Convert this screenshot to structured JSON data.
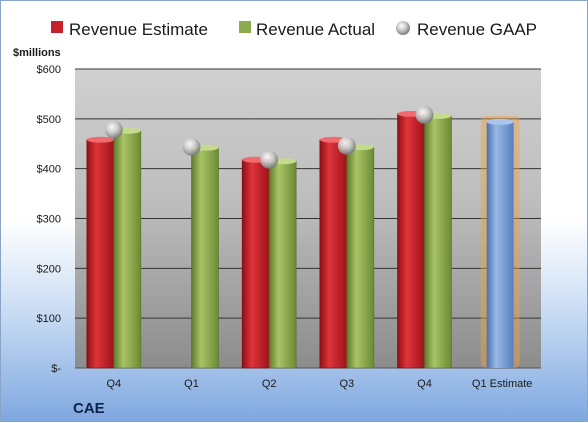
{
  "chart_data": {
    "type": "bar",
    "company": "CAE",
    "ylabel": "$millions",
    "ylim": [
      0,
      600
    ],
    "y_ticks": [
      "$-",
      "$100",
      "$200",
      "$300",
      "$400",
      "$500",
      "$600"
    ],
    "y_tick_values": [
      0,
      100,
      200,
      300,
      400,
      500,
      600
    ],
    "categories": [
      "Q4",
      "Q1",
      "Q2",
      "Q3",
      "Q4",
      "Q1 Estimate"
    ],
    "grid": true,
    "legend_position": "top",
    "series": [
      {
        "name": "Revenue Estimate",
        "color": "#c8202a",
        "values": [
          458,
          null,
          418,
          458,
          510,
          null
        ]
      },
      {
        "name": "Revenue Actual",
        "color": "#8caa4e",
        "values": [
          476,
          442,
          415,
          443,
          506,
          null
        ]
      },
      {
        "name": "Revenue GAAP",
        "color": "#b8b8b8",
        "values": [
          478,
          444,
          418,
          446,
          508,
          null
        ]
      }
    ],
    "forecast": {
      "category": "Q1 Estimate",
      "value": 494,
      "color": "#6f9ad6",
      "glow": "#f0a040"
    }
  }
}
